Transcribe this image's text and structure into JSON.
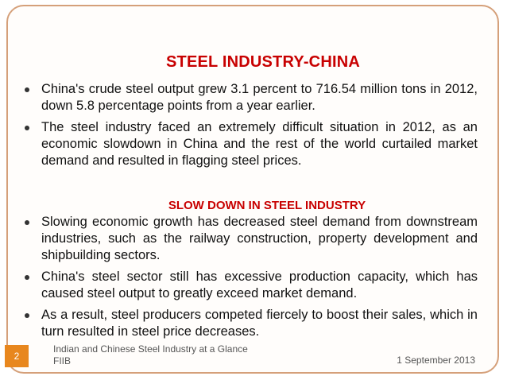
{
  "slide": {
    "title": "STEEL INDUSTRY-CHINA",
    "section1": [
      "China's crude steel output grew 3.1 percent to 716.54 million tons in 2012, down 5.8 percentage points from a year earlier.",
      "The steel industry faced an extremely difficult situation in 2012, as an economic slowdown in China and the rest of the world curtailed market demand and resulted in flagging steel prices."
    ],
    "subtitle": "SLOW DOWN IN STEEL INDUSTRY",
    "section2": [
      "Slowing economic growth has decreased steel demand from downstream industries, such as the railway construction, property development and shipbuilding sectors.",
      "China's steel sector still has excessive production capacity, which has caused steel output to greatly exceed market demand.",
      "As a result, steel producers competed fiercely to boost their sales, which in turn resulted in steel price decreases."
    ]
  },
  "footer": {
    "page_number": "2",
    "line1": "Indian and Chinese Steel Industry at a Glance",
    "line2": "FIIB",
    "date": "1 September 2013"
  },
  "colors": {
    "accent_red": "#c80000",
    "page_badge": "#e8871e",
    "frame": "#d5a07a"
  }
}
